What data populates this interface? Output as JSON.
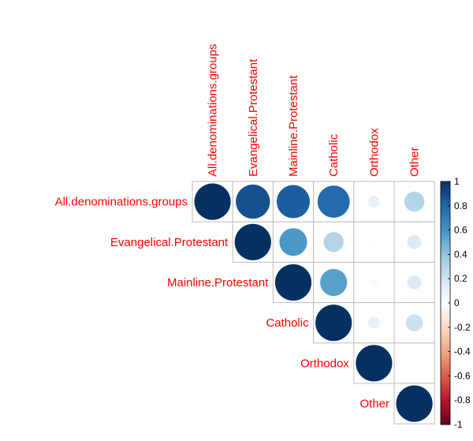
{
  "chart_data": {
    "type": "heatmap",
    "variables": [
      "All.denominations.groups",
      "Evangelical.Protestant",
      "Mainline.Protestant",
      "Catholic",
      "Orthodox",
      "Other"
    ],
    "matrix_upper": [
      [
        1.0,
        0.88,
        0.83,
        0.78,
        0.1,
        0.3
      ],
      [
        null,
        1.0,
        0.58,
        0.3,
        0.02,
        0.15
      ],
      [
        null,
        null,
        1.0,
        0.55,
        0.04,
        0.15
      ],
      [
        null,
        null,
        null,
        1.0,
        0.1,
        0.22
      ],
      [
        null,
        null,
        null,
        null,
        1.0,
        0.01
      ],
      [
        null,
        null,
        null,
        null,
        null,
        1.0
      ]
    ],
    "colorbar": {
      "min": -1,
      "max": 1,
      "tick_labels": [
        "1",
        "0.8",
        "0.6",
        "0.4",
        "0.2",
        "0",
        "-0.2",
        "-0.4",
        "-0.6",
        "-0.8",
        "-1"
      ],
      "colors": [
        "#67001F",
        "#B2182B",
        "#D6604D",
        "#F4A582",
        "#FDDBC7",
        "#FFFFFF",
        "#D1E5F0",
        "#92C5DE",
        "#4393C3",
        "#2166AC",
        "#053061"
      ]
    },
    "label_color": "#ff0000",
    "grid_color": "#bebebe"
  }
}
